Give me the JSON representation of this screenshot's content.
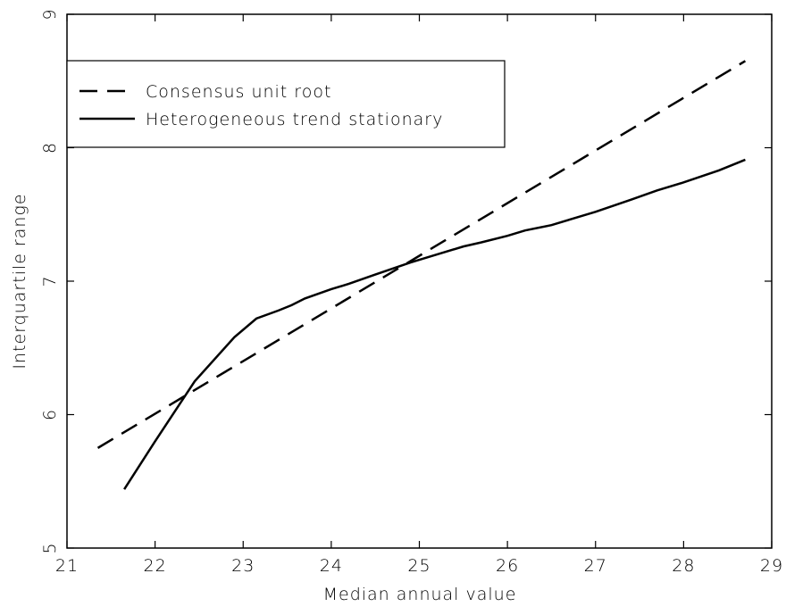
{
  "chart_data": {
    "type": "line",
    "xlabel": "Median annual value",
    "ylabel": "Interquartile range",
    "xlim": [
      21,
      29
    ],
    "xticks": [
      21,
      22,
      23,
      24,
      25,
      26,
      27,
      28,
      29
    ],
    "ylim": [
      5,
      9
    ],
    "yticks": [
      5,
      6,
      7,
      8,
      9
    ],
    "legend": "upper left",
    "series": [
      {
        "name": "Consensus unit root",
        "color": "#000000",
        "dash": true,
        "x": [
          21.35,
          28.7
        ],
        "values": [
          5.75,
          8.65
        ]
      },
      {
        "name": "Heterogeneous trend stationary",
        "color": "#000000",
        "dash": false,
        "x": [
          21.65,
          22.0,
          22.3,
          22.45,
          22.9,
          23.15,
          23.4,
          23.55,
          23.7,
          24.0,
          24.2,
          24.5,
          24.9,
          25.2,
          25.5,
          25.7,
          26.0,
          26.2,
          26.5,
          26.7,
          27.0,
          27.4,
          27.7,
          28.0,
          28.4,
          28.7
        ],
        "values": [
          5.44,
          5.8,
          6.1,
          6.25,
          6.58,
          6.72,
          6.78,
          6.82,
          6.87,
          6.94,
          6.98,
          7.05,
          7.14,
          7.2,
          7.26,
          7.29,
          7.34,
          7.38,
          7.42,
          7.46,
          7.52,
          7.61,
          7.68,
          7.74,
          7.83,
          7.91
        ]
      }
    ]
  }
}
